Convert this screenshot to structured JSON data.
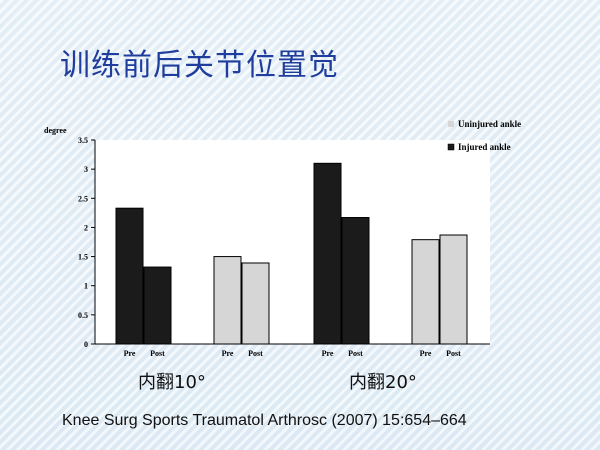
{
  "title": "训练前后关节位置觉",
  "citation": "Knee Surg Sports Traumatol Arthrosc (2007) 15:654–664",
  "colors": {
    "injured": "#1b1b1b",
    "uninjured": "#d6d6d6",
    "title": "#1f3d9c"
  },
  "chart_data": {
    "type": "bar",
    "ylabel": "degree",
    "ylim": [
      0,
      3.5
    ],
    "yticks": [
      "0",
      "0.5",
      "1",
      "1.5",
      "2",
      "2.5",
      "3",
      "3.5"
    ],
    "legend": [
      "Uninjured ankle",
      "Injured ankle"
    ],
    "legend_position": "top-right",
    "groups": [
      {
        "label": "内翻10°",
        "subgroups": [
          {
            "series": "Injured ankle",
            "categories": [
              "Pre",
              "Post"
            ],
            "values": [
              2.33,
              1.32
            ]
          },
          {
            "series": "Uninjured ankle",
            "categories": [
              "Pre",
              "Post"
            ],
            "values": [
              1.5,
              1.39
            ]
          }
        ]
      },
      {
        "label": "内翻20°",
        "subgroups": [
          {
            "series": "Injured ankle",
            "categories": [
              "Pre",
              "Post"
            ],
            "values": [
              3.1,
              2.17
            ]
          },
          {
            "series": "Uninjured ankle",
            "categories": [
              "Pre",
              "Post"
            ],
            "values": [
              1.79,
              1.87
            ]
          }
        ]
      }
    ]
  }
}
